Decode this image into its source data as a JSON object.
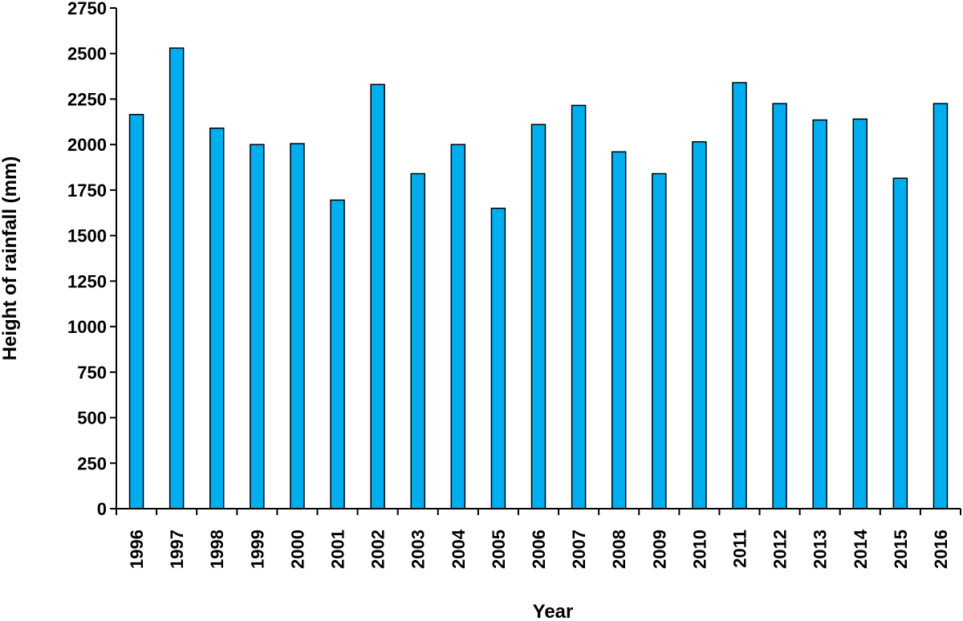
{
  "chart_data": {
    "type": "bar",
    "title": "",
    "xlabel": "Year",
    "ylabel": "Height of rainfall (mm)",
    "ylim": [
      0,
      2750
    ],
    "yticks": [
      0,
      250,
      500,
      750,
      1000,
      1250,
      1500,
      1750,
      2000,
      2250,
      2500,
      2750
    ],
    "grid": false,
    "legend": "none",
    "bar_color": "#00AEEF",
    "bar_outline": "#000000",
    "categories": [
      "1996",
      "1997",
      "1998",
      "1999",
      "2000",
      "2001",
      "2002",
      "2003",
      "2004",
      "2005",
      "2006",
      "2007",
      "2008",
      "2009",
      "2010",
      "2011",
      "2012",
      "2013",
      "2014",
      "2015",
      "2016"
    ],
    "values": [
      2165,
      2530,
      2090,
      2000,
      2005,
      1695,
      2330,
      1840,
      2000,
      1650,
      2110,
      2215,
      1960,
      1840,
      2015,
      2340,
      2225,
      2135,
      2140,
      1815,
      2225
    ]
  }
}
